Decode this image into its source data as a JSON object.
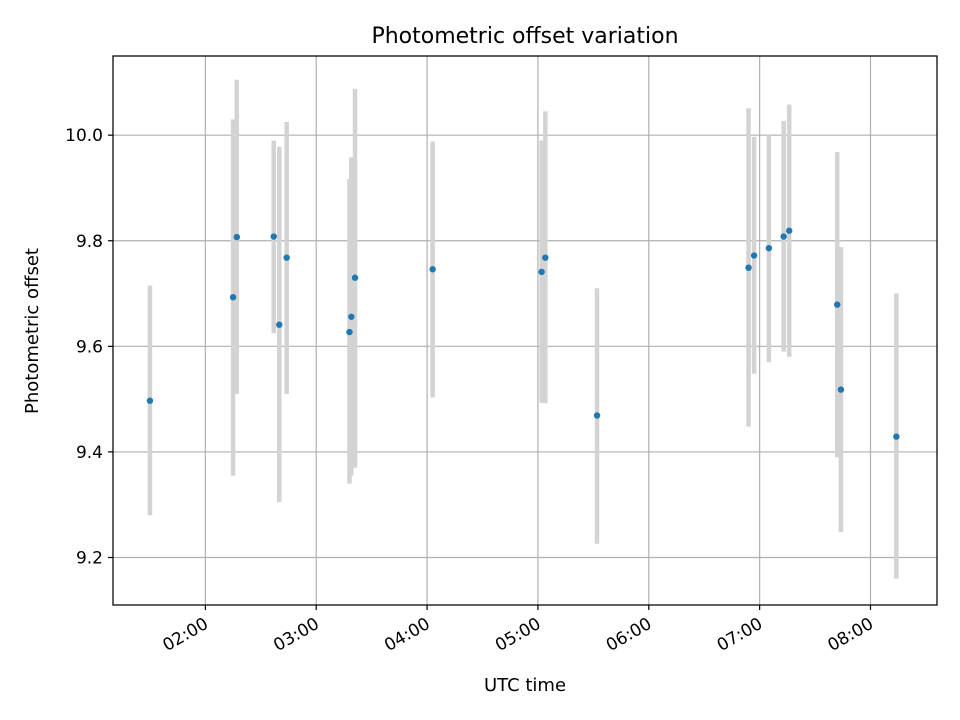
{
  "chart_data": {
    "type": "scatter",
    "title": "Photometric offset variation",
    "xlabel": "UTC time",
    "ylabel": "Photometric offset",
    "x_axis_kind": "time",
    "xlim": [
      "01:10",
      "08:36"
    ],
    "ylim": [
      9.11,
      10.15
    ],
    "grid": true,
    "legend": "none",
    "x_ticks": [
      "02:00",
      "03:00",
      "04:00",
      "05:00",
      "06:00",
      "07:00",
      "08:00"
    ],
    "y_ticks": [
      9.2,
      9.4,
      9.6,
      9.8,
      10.0
    ],
    "y_tick_labels": [
      "9.2",
      "9.4",
      "9.6",
      "9.8",
      "10.0"
    ],
    "colors": {
      "point": "#1f77b4",
      "errorbar": "#d3d3d3",
      "grid": "#b0b0b0",
      "axes": "#000000"
    },
    "series": [
      {
        "points": [
          {
            "x": "01:30",
            "y": 9.497,
            "ylow": 9.28,
            "yhigh": 9.715
          },
          {
            "x": "02:15",
            "y": 9.693,
            "ylow": 9.355,
            "yhigh": 10.03
          },
          {
            "x": "02:17",
            "y": 9.807,
            "ylow": 9.51,
            "yhigh": 10.105
          },
          {
            "x": "02:37",
            "y": 9.808,
            "ylow": 9.625,
            "yhigh": 9.99
          },
          {
            "x": "02:40",
            "y": 9.641,
            "ylow": 9.305,
            "yhigh": 9.978
          },
          {
            "x": "02:44",
            "y": 9.768,
            "ylow": 9.51,
            "yhigh": 10.025
          },
          {
            "x": "03:18",
            "y": 9.627,
            "ylow": 9.34,
            "yhigh": 9.917
          },
          {
            "x": "03:19",
            "y": 9.656,
            "ylow": 9.355,
            "yhigh": 9.958
          },
          {
            "x": "03:21",
            "y": 9.73,
            "ylow": 9.37,
            "yhigh": 10.088
          },
          {
            "x": "04:03",
            "y": 9.746,
            "ylow": 9.503,
            "yhigh": 9.988
          },
          {
            "x": "05:02",
            "y": 9.741,
            "ylow": 9.493,
            "yhigh": 9.99
          },
          {
            "x": "05:04",
            "y": 9.768,
            "ylow": 9.492,
            "yhigh": 10.045
          },
          {
            "x": "05:32",
            "y": 9.469,
            "ylow": 9.226,
            "yhigh": 9.71
          },
          {
            "x": "06:54",
            "y": 9.749,
            "ylow": 9.448,
            "yhigh": 10.051
          },
          {
            "x": "06:57",
            "y": 9.772,
            "ylow": 9.548,
            "yhigh": 9.997
          },
          {
            "x": "07:05",
            "y": 9.786,
            "ylow": 9.57,
            "yhigh": 10.0
          },
          {
            "x": "07:13",
            "y": 9.808,
            "ylow": 9.59,
            "yhigh": 10.027
          },
          {
            "x": "07:16",
            "y": 9.819,
            "ylow": 9.58,
            "yhigh": 10.058
          },
          {
            "x": "07:42",
            "y": 9.679,
            "ylow": 9.39,
            "yhigh": 9.968
          },
          {
            "x": "07:44",
            "y": 9.518,
            "ylow": 9.248,
            "yhigh": 9.788
          },
          {
            "x": "08:14",
            "y": 9.429,
            "ylow": 9.16,
            "yhigh": 9.7
          }
        ]
      }
    ]
  }
}
